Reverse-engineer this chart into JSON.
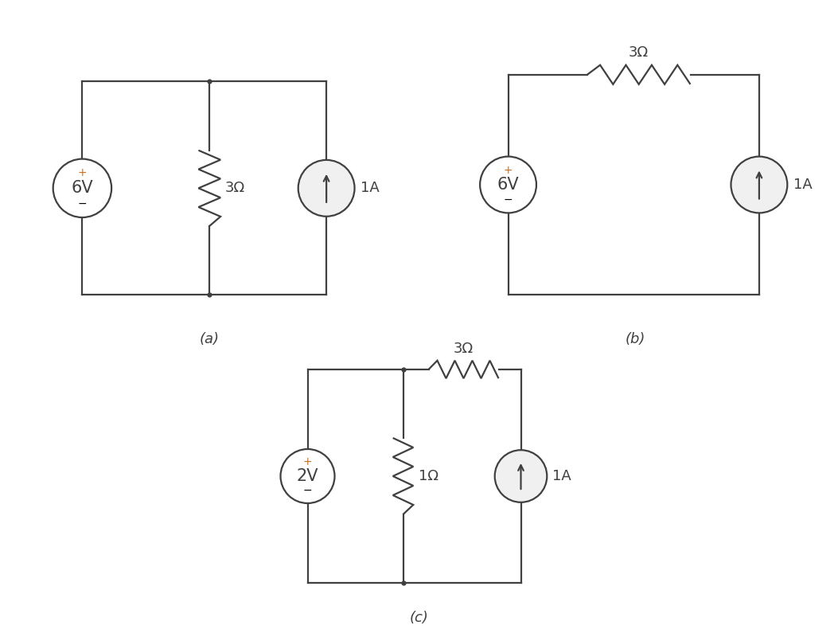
{
  "bg_color": "#ffffff",
  "line_color": "#404040",
  "line_width": 1.6,
  "circuit_a": {
    "label": "(a)",
    "vs_label": "6V",
    "res_label": "3Ω",
    "cs_label": "1A"
  },
  "circuit_b": {
    "label": "(b)",
    "vs_label": "6V",
    "res_label": "3Ω",
    "cs_label": "1A"
  },
  "circuit_c": {
    "label": "(c)",
    "vs_label": "2V",
    "res_top_label": "3Ω",
    "res_mid_label": "1Ω",
    "cs_label": "1A"
  },
  "plus_color": "#c87020",
  "minus_color": "#000000",
  "label_fontsize": 13,
  "symbol_fontsize": 10,
  "vs_fontsize": 15,
  "cs_fill": "#f0f0f0"
}
